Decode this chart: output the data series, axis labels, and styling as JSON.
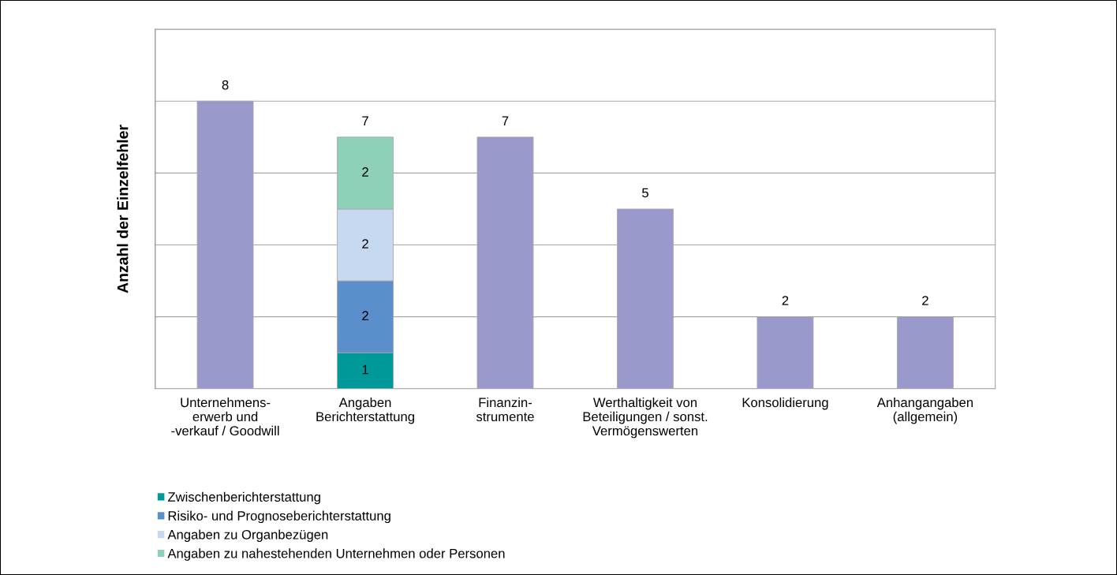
{
  "chart_data": {
    "type": "bar",
    "stacked": true,
    "ylabel": "Anzahl der Einzelfehler",
    "categories": [
      "Unternehmens-\nerwerb und\n-verkauf / Goodwill",
      "Angaben\nBerichterstattung",
      "Finanzin-\nstrumente",
      "Werthaltigkeit von\nBeteiligungen / sonst.\nVermögenswerten",
      "Konsolidierung",
      "Anhangangaben\n(allgemein)"
    ],
    "series": [
      {
        "name": "Zwischenberichterstattung",
        "color": "#009999",
        "values": [
          null,
          1,
          null,
          null,
          null,
          null
        ]
      },
      {
        "name": "Risiko- und Prognoseberichterstattung",
        "color": "#5b8fcc",
        "values": [
          null,
          2,
          null,
          null,
          null,
          null
        ]
      },
      {
        "name": "Angaben zu Organbezügen",
        "color": "#c6d9f0",
        "values": [
          null,
          2,
          null,
          null,
          null,
          null
        ]
      },
      {
        "name": "Angaben zu nahestehenden Unternehmen oder Personen",
        "color": "#8fd1b8",
        "values": [
          null,
          2,
          null,
          null,
          null,
          null
        ]
      },
      {
        "color": "#9999cc",
        "values": [
          8,
          null,
          7,
          5,
          2,
          2
        ]
      }
    ],
    "totals": [
      null,
      "7",
      null,
      null,
      null,
      null
    ],
    "data_labels": true,
    "ylim": [
      0,
      10
    ],
    "yticks": [
      {
        "value": 0,
        "label": null
      },
      {
        "value": 2,
        "label": null
      },
      {
        "value": 4,
        "label": null
      },
      {
        "value": 6,
        "label": null
      },
      {
        "value": 8,
        "label": null
      },
      {
        "value": 10,
        "label": null
      }
    ],
    "grid": "y",
    "legend": "bottom left",
    "tick_labels": "x"
  }
}
